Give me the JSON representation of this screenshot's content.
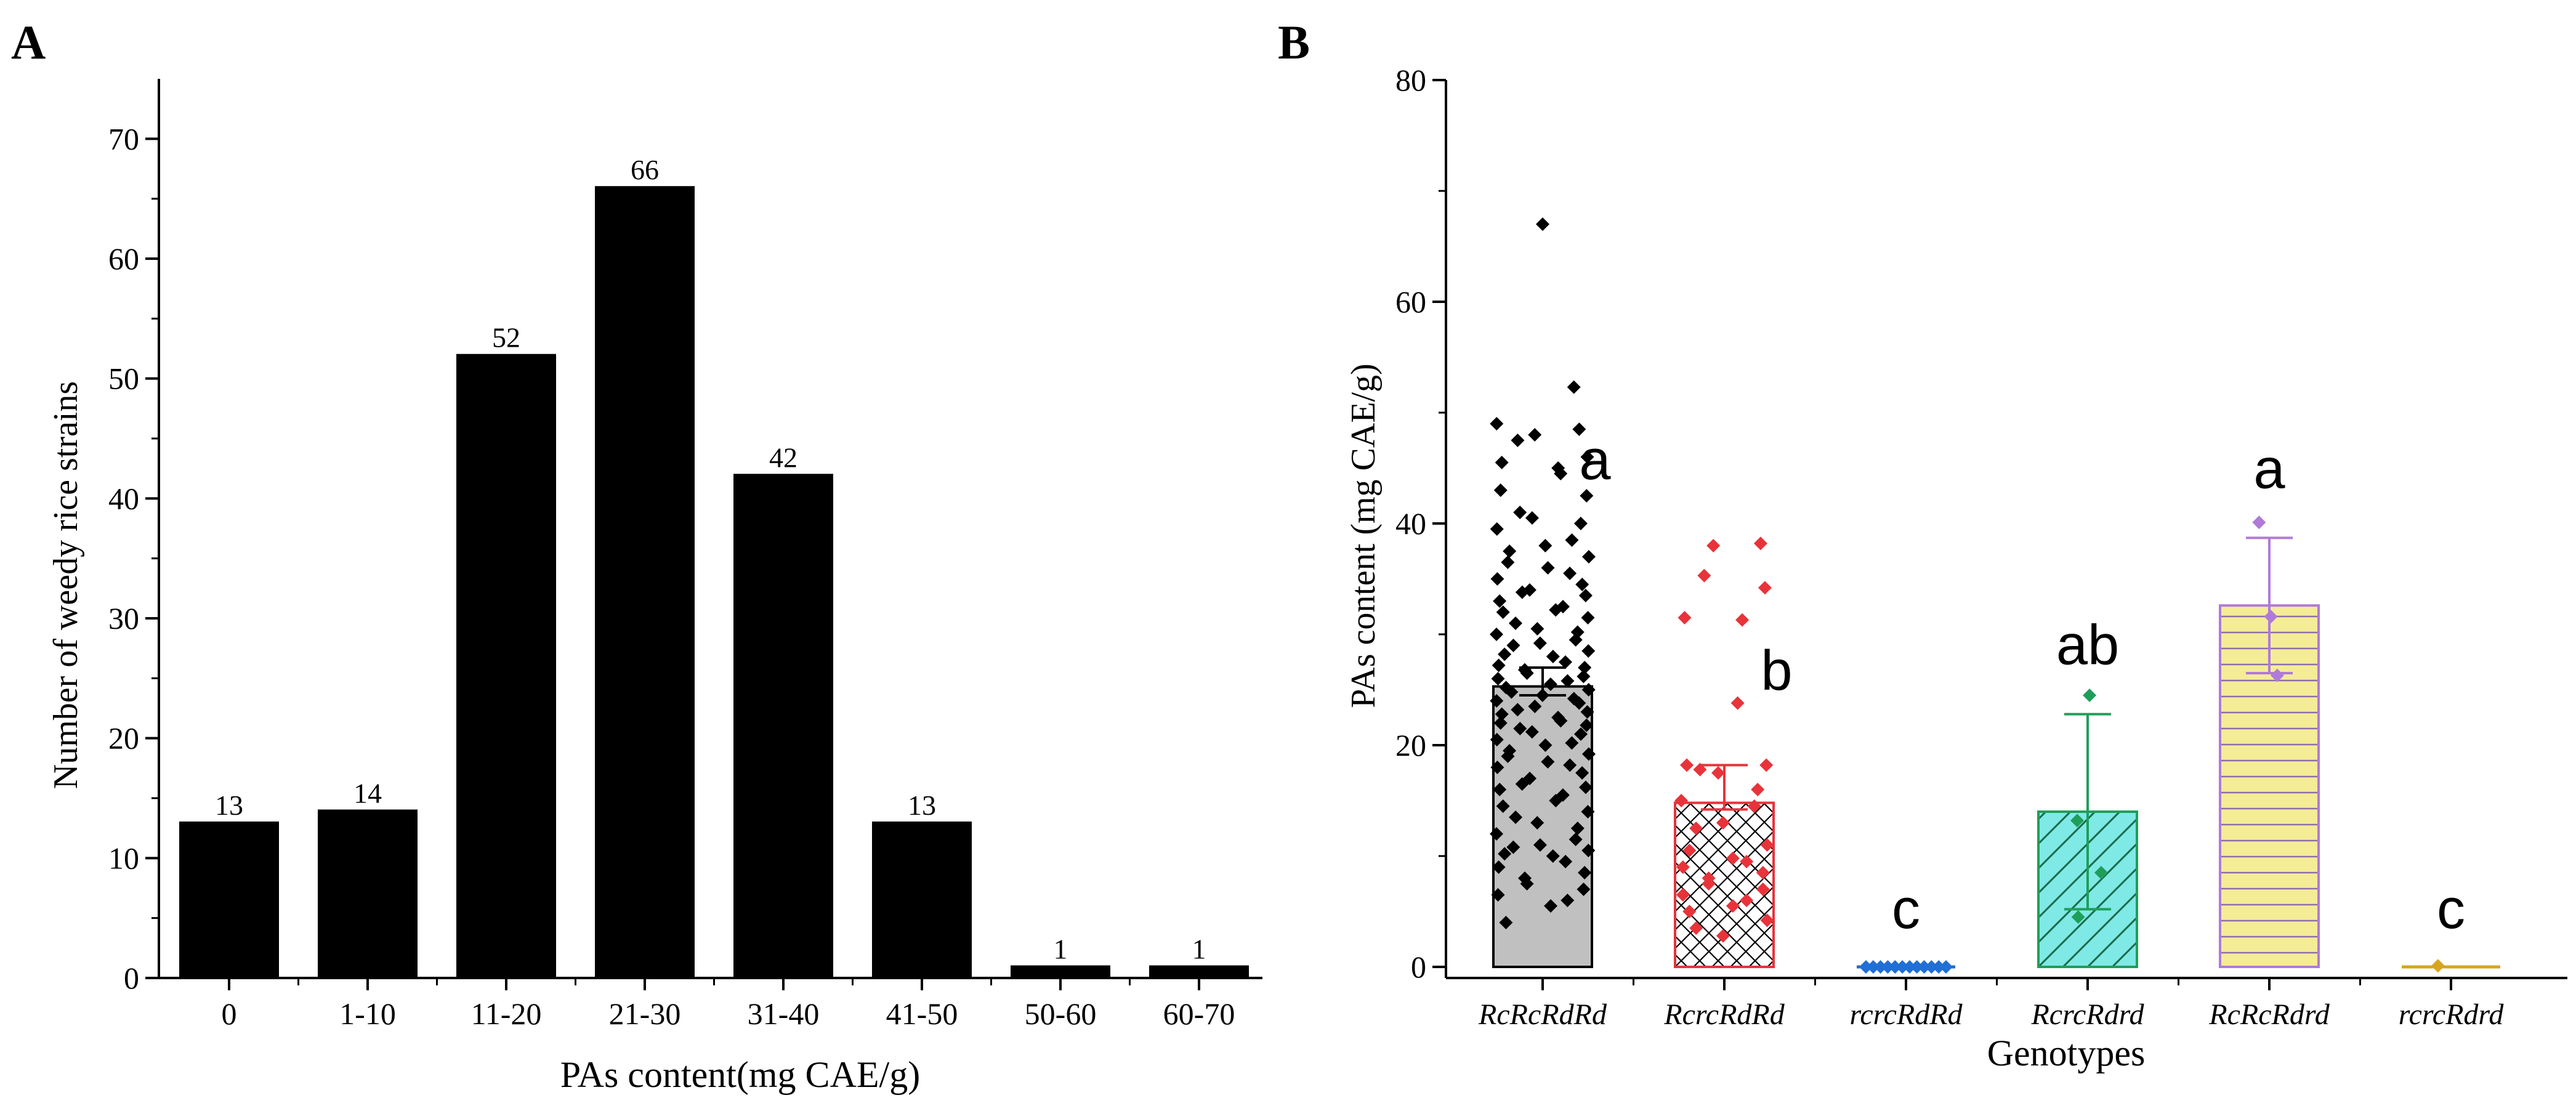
{
  "chart_data": [
    {
      "panel_label": "A",
      "type": "bar",
      "title": "",
      "xlabel": "PAs content(mg CAE/g)",
      "ylabel": "Number of weedy rice strains",
      "ylim": [
        0,
        75
      ],
      "yticks": [
        0,
        10,
        20,
        30,
        40,
        50,
        60,
        70
      ],
      "ytick_labels": [
        "0",
        "10",
        "20",
        "30",
        "40",
        "50",
        "60",
        "70"
      ],
      "categories": [
        "0",
        "1-10",
        "11-20",
        "21-30",
        "31-40",
        "41-50",
        "50-60",
        "60-70"
      ],
      "values": [
        13,
        14,
        52,
        66,
        42,
        13,
        1,
        1
      ],
      "data_labels": [
        "13",
        "14",
        "52",
        "66",
        "42",
        "13",
        "1",
        "1"
      ],
      "color": "#000000"
    },
    {
      "panel_label": "B",
      "type": "bar",
      "title": "",
      "xlabel": "Genotypes",
      "ylabel": "PAs content (mg CAE/g)",
      "ylim": [
        -1,
        80
      ],
      "yticks": [
        0,
        20,
        40,
        60,
        80
      ],
      "ytick_labels": [
        "0",
        "20",
        "40",
        "60",
        "80"
      ],
      "categories": [
        "RcRcRdRd",
        "RcrcRdRd",
        "rcrcRdRd",
        "RcrcRdrd",
        "RcRcRdrd",
        "rcrcRdrd"
      ],
      "means": [
        25.3,
        14.8,
        0,
        14.0,
        32.6,
        0
      ],
      "error_upper": [
        27.0,
        18.2,
        0.3,
        22.8,
        38.7,
        0.3
      ],
      "error_lower": [
        24.5,
        14.2,
        0,
        5.2,
        26.5,
        0
      ],
      "letters": [
        "a",
        "b",
        "c",
        "ab",
        "a",
        "c"
      ],
      "fills": [
        "#c0c0c0",
        "#ffffff",
        "#ffffff",
        "#7fe9e6",
        "#f5ec96",
        "#ffffff"
      ],
      "strokes": [
        "#000000",
        "#e8333a",
        "#1f6fd6",
        "#1f9e5a",
        "#b07ad8",
        "#d7a520"
      ],
      "patterns": [
        "solid",
        "crosshatch",
        "none",
        "diagonal",
        "horizontal",
        "none"
      ],
      "points": [
        [
          67,
          52.3,
          49,
          48.5,
          48,
          47.5,
          46,
          45.5,
          45,
          44.5,
          43,
          42.5,
          41,
          40.5,
          40,
          39.5,
          38.5,
          38,
          37.5,
          37,
          36.5,
          36,
          35.5,
          35,
          34.5,
          34,
          33.8,
          33.5,
          33,
          32.5,
          32.2,
          32,
          31.5,
          31,
          30.5,
          30.2,
          30,
          29.5,
          29.2,
          29,
          28.5,
          28.2,
          28,
          27.5,
          27.2,
          27,
          26.8,
          26.5,
          26.2,
          26,
          25.8,
          25.5,
          25.2,
          25,
          24.8,
          24.5,
          24.2,
          24,
          23.8,
          23.5,
          23.2,
          23,
          22.8,
          22.5,
          22.2,
          22,
          21.8,
          21.5,
          21.2,
          21,
          20.5,
          20.2,
          20,
          19.5,
          19.2,
          19,
          18.5,
          18.2,
          18,
          17.5,
          17,
          16.5,
          16.2,
          16,
          15.5,
          15,
          14.5,
          14,
          13.5,
          13,
          12.5,
          12,
          11.5,
          11,
          10.8,
          10.5,
          10.2,
          10,
          9.5,
          9,
          8.5,
          8,
          7.5,
          7,
          6.5,
          6,
          5.5,
          4
        ],
        [
          38.2,
          38.0,
          35.3,
          34.2,
          31.5,
          31.3,
          23.8,
          18.2,
          18.2,
          17.8,
          17.5,
          16.0,
          15.0,
          14.5,
          13.0,
          12.5,
          11.0,
          10.5,
          9.8,
          9.5,
          9.0,
          8.5,
          8.0,
          7.5,
          7.0,
          6.5,
          6.0,
          5.5,
          5.0,
          4.2,
          3.5,
          2.8
        ],
        [
          0,
          0,
          0,
          0,
          0,
          0,
          0,
          0,
          0,
          0,
          0,
          0
        ],
        [
          24.5,
          13.2,
          8.5,
          4.5
        ],
        [
          40.1,
          31.6,
          26.3
        ],
        [
          0.1
        ]
      ]
    }
  ]
}
